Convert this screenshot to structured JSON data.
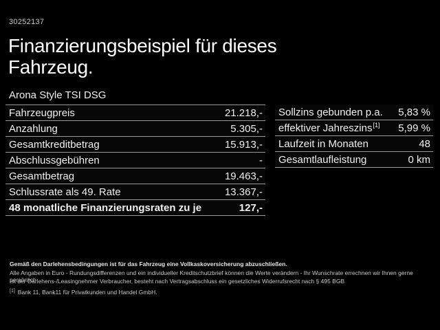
{
  "window": {
    "id_number": "30252137"
  },
  "header": {
    "title_line1": "Finanzierungsbeispiel für dieses",
    "title_line2": "Fahrzeug.",
    "model": "Arona Style TSI DSG"
  },
  "finance_table": {
    "left_rows": [
      {
        "label": "Fahrzeugpreis",
        "value": "21.218,-"
      },
      {
        "label": "Anzahlung",
        "value": "5.305,-"
      },
      {
        "label": "Gesamtkreditbetrag",
        "value": "15.913,-"
      },
      {
        "label": "Abschlussgebühren",
        "value": "-"
      },
      {
        "label": "Gesamtbetrag",
        "value": "19.463,-"
      },
      {
        "label": "Schlussrate als 49. Rate",
        "value": "13.367,-"
      },
      {
        "label": "48 monatliche Finanzierungsraten zu je",
        "value": "127,-",
        "bold": true
      }
    ],
    "right_rows": [
      {
        "label": "Sollzins gebunden p.a.",
        "value": "5,83 %"
      },
      {
        "label": "effektiver Jahreszins",
        "sup": "[1]",
        "value": "5,99 %"
      },
      {
        "label": "Laufzeit in Monaten",
        "value": "48"
      },
      {
        "label": "Gesamtlaufleistung",
        "value": "0 km"
      }
    ]
  },
  "footer": {
    "bold_note": "Gemäß den Darlehensbedingungen ist für das Fahrzeug eine Vollkaskoversicherung abzuschließen.",
    "note_line2": "Alle Angaben in Euro - Rundungsdifferenzen und ein individueller Kreditschutzbrief können die Werte verändern - Ihr Wunschrate errechnen wir Ihnen gerne persönlich",
    "note_line3": "Ist der Darlehens-/Leasingnehmer Verbraucher, besteht nach Vertragsabschluss ein gesetzliches Widerrufsrecht nach § 495 BGB",
    "footnote_marker": "[1]",
    "footnote_text": "Bank 11, Bank11 für Privatkunden und Handel GmbH."
  },
  "colors": {
    "background": "#000000",
    "text_primary": "#f2f2f2",
    "text_secondary": "#c9c9c9",
    "separator": "#9a9a9a"
  }
}
